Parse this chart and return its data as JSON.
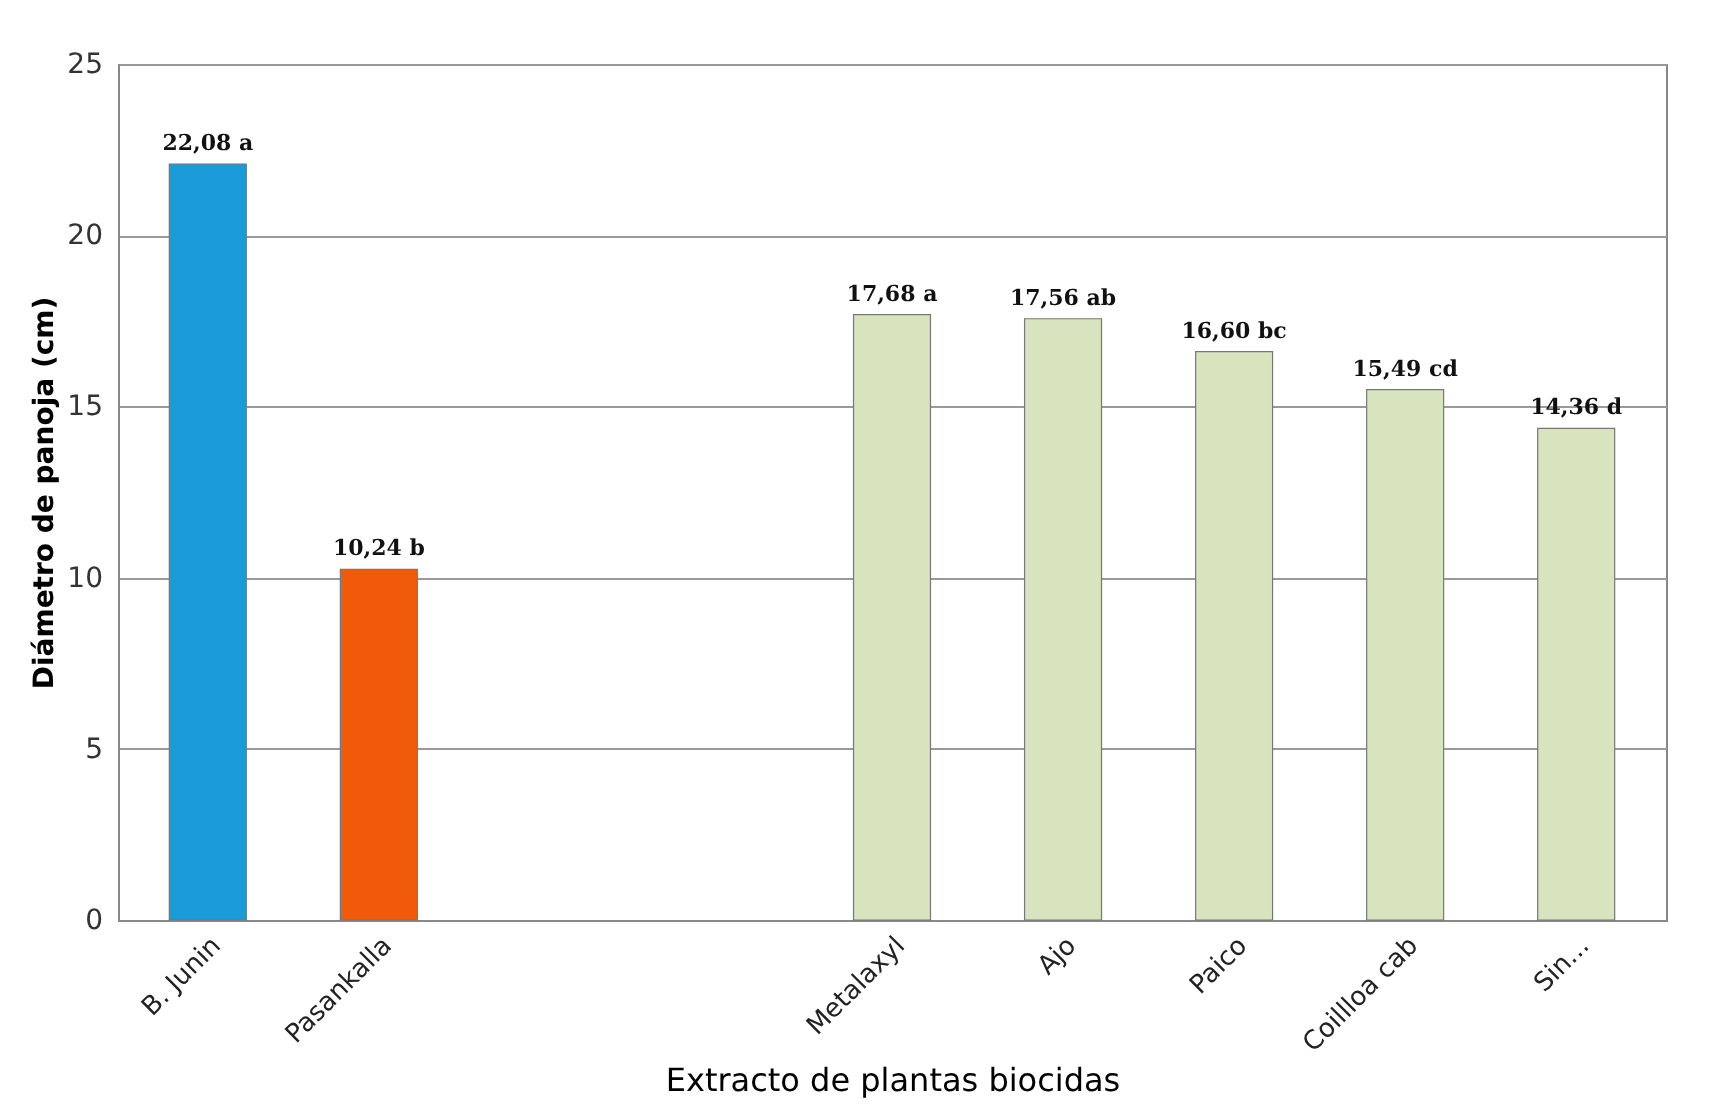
{
  "chart_data": {
    "type": "bar",
    "xlabel": "Extracto de plantas biocidas",
    "ylabel": "Diámetro de panoja (cm)",
    "categories": [
      "B. Junin",
      "Pasankalla",
      null,
      null,
      "Metalaxyl",
      "Ajo",
      "Paico",
      "Coillloa cab",
      "Sin..."
    ],
    "values": [
      22.08,
      10.24,
      null,
      null,
      17.68,
      17.56,
      16.6,
      15.49,
      14.36
    ],
    "colors": [
      "#1a9ad6",
      "#f05a0a",
      null,
      null,
      "#d7e4bd",
      "#d7e4bd",
      "#d7e4bd",
      "#d7e4bd",
      "#d7e4bd"
    ],
    "value_labels": [
      "22,08  a",
      "10,24 b",
      null,
      null,
      "17,68  a",
      "17,56  ab",
      "16,60 bc",
      "15,49  cd",
      "14,36  d"
    ],
    "ylim": [
      0,
      25
    ],
    "yticks": [
      0,
      5,
      10,
      15,
      20,
      25
    ],
    "grid": "y"
  }
}
